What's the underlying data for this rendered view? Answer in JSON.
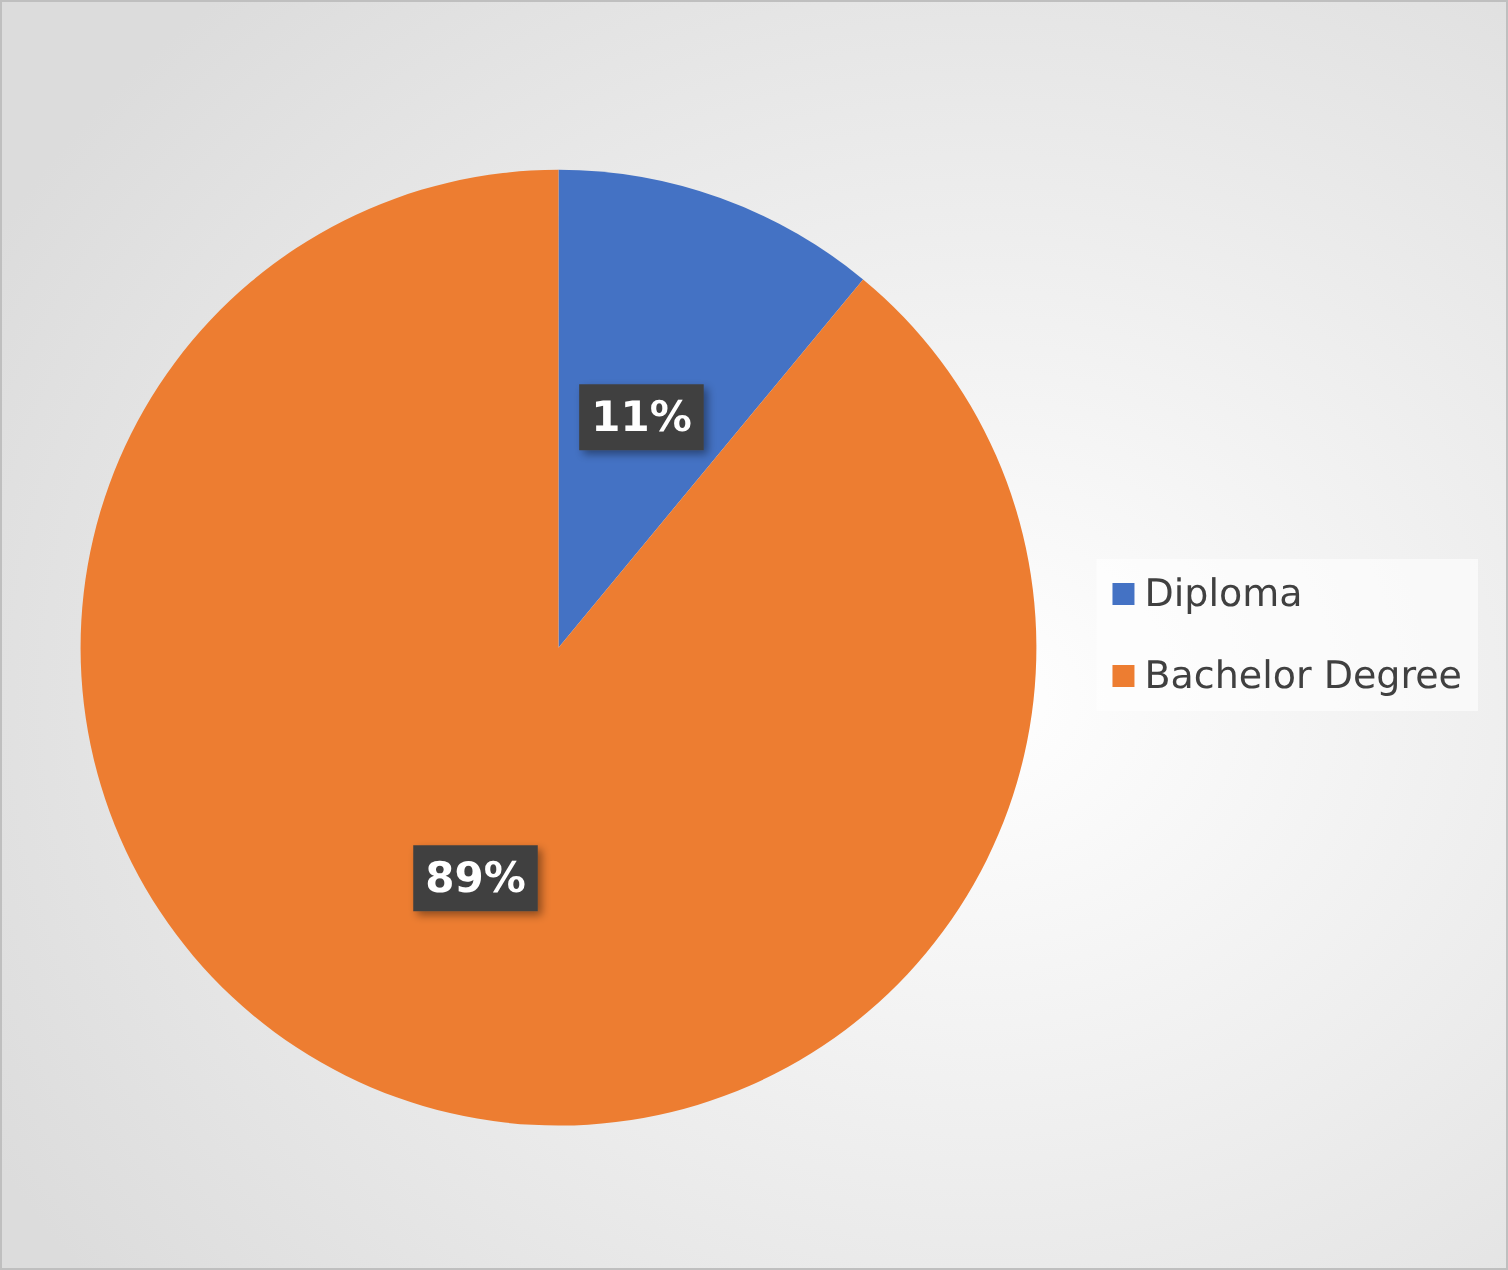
{
  "chart_data": {
    "type": "pie",
    "categories": [
      "Diploma",
      "Bachelor Degree"
    ],
    "values": [
      11,
      89
    ],
    "colors": [
      "#4472c4",
      "#ed7d31"
    ],
    "value_labels": [
      "11%",
      "89%"
    ],
    "legend": "right"
  }
}
